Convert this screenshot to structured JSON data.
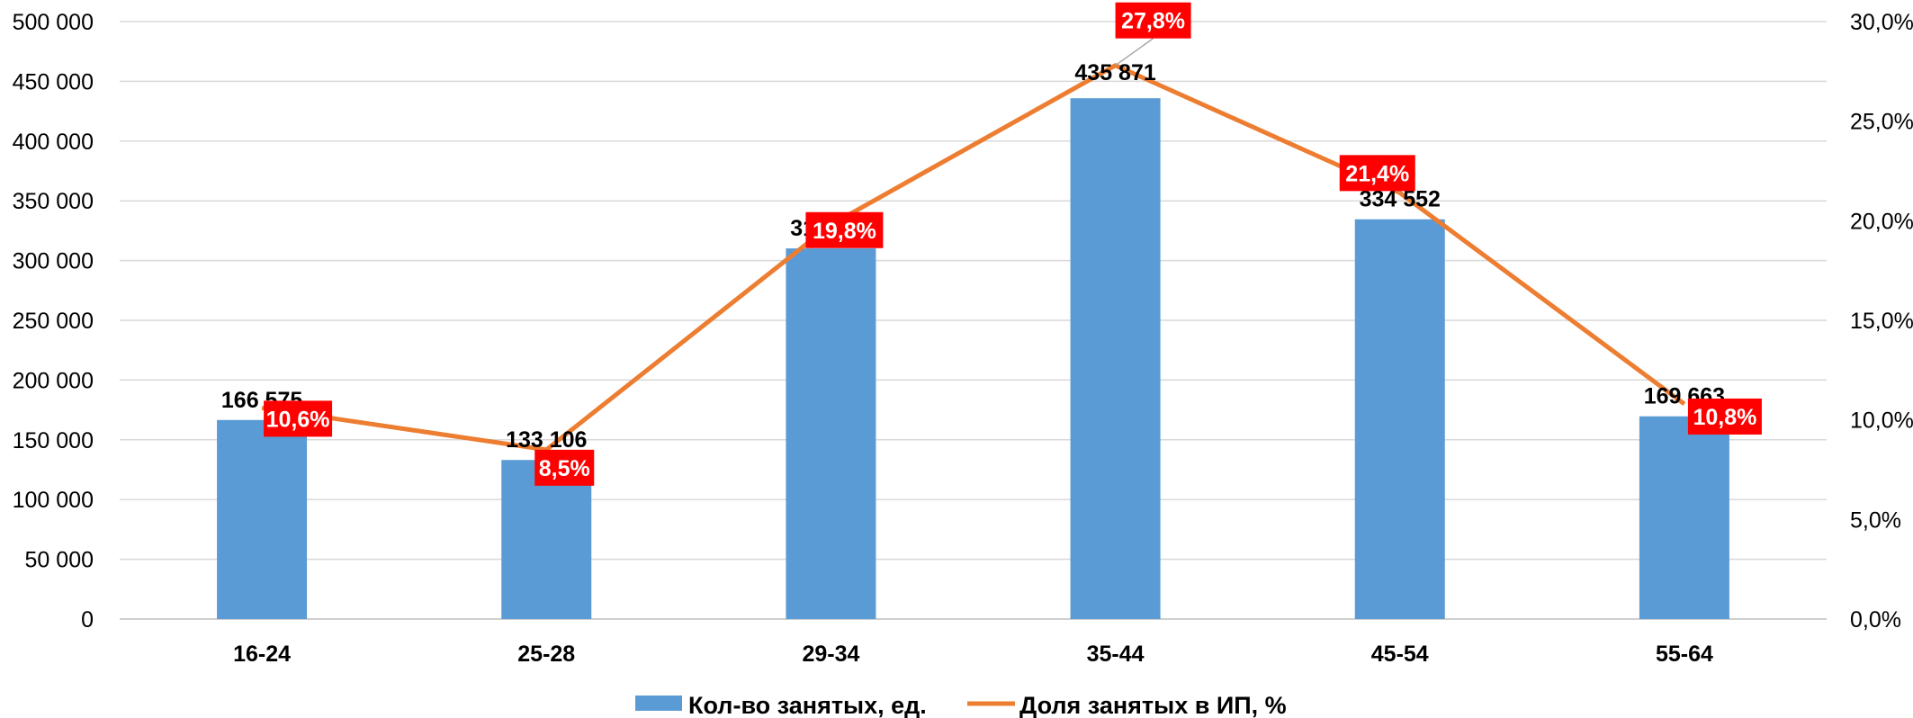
{
  "chart_data": {
    "type": "bar",
    "categories": [
      "16-24",
      "25-28",
      "29-34",
      "35-44",
      "45-54",
      "55-64"
    ],
    "series": [
      {
        "name": "Кол-во занятых, ед.",
        "type": "bar",
        "axis": "left",
        "values": [
          166575,
          133106,
          310178,
          435871,
          334552,
          169663
        ],
        "labels": [
          "166 575",
          "133 106",
          "310 178",
          "435 871",
          "334 552",
          "169 663"
        ],
        "color": "#5B9BD5"
      },
      {
        "name": "Доля занятых в ИП, %",
        "type": "line",
        "axis": "right",
        "values": [
          10.6,
          8.5,
          19.8,
          27.8,
          21.4,
          10.8
        ],
        "labels": [
          "10,6%",
          "8,5%",
          "19,8%",
          "27,8%",
          "21,4%",
          "10,8%"
        ],
        "color": "#ED7D31",
        "label_bg": "#FF0000"
      }
    ],
    "y_left": {
      "range": [
        0,
        500000
      ],
      "ticks": [
        0,
        50000,
        100000,
        150000,
        200000,
        250000,
        300000,
        350000,
        400000,
        450000,
        500000
      ],
      "tick_labels": [
        "0",
        "50 000",
        "100 000",
        "150 000",
        "200 000",
        "250 000",
        "300 000",
        "350 000",
        "400 000",
        "450 000",
        "500 000"
      ]
    },
    "y_right": {
      "range": [
        0,
        30
      ],
      "ticks": [
        0,
        5,
        10,
        15,
        20,
        25,
        30
      ],
      "tick_labels": [
        "0,0%",
        "5,0%",
        "10,0%",
        "15,0%",
        "20,0%",
        "25,0%",
        "30,0%"
      ]
    },
    "grid": true,
    "legend_position": "bottom",
    "gridline_color": "#D9D9D9"
  }
}
